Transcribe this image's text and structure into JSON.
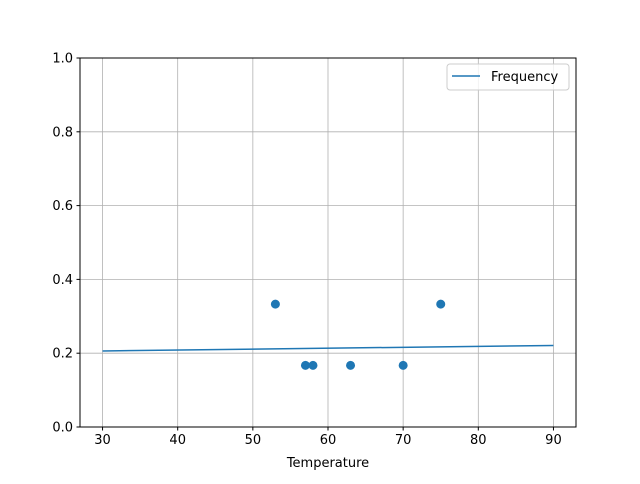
{
  "chart_data": {
    "type": "scatter",
    "xlabel": "Temperature",
    "ylabel": "",
    "xlim": [
      27,
      93
    ],
    "ylim": [
      0,
      1
    ],
    "xticks": [
      30,
      40,
      50,
      60,
      70,
      80,
      90
    ],
    "yticks": [
      "0.0",
      "0.2",
      "0.4",
      "0.6",
      "0.8",
      "1.0"
    ],
    "grid": true,
    "legend_position": "top-right",
    "color": "#1f77b4",
    "points": {
      "x": [
        53,
        57,
        58,
        63,
        70,
        75
      ],
      "y": [
        0.333,
        0.167,
        0.167,
        0.167,
        0.167,
        0.333
      ]
    },
    "line": {
      "name": "Frequency",
      "x": [
        30,
        90
      ],
      "y": [
        0.206,
        0.221
      ]
    }
  }
}
